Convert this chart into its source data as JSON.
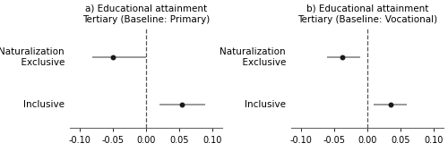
{
  "panels": [
    {
      "title": "a) Educational attainment\nTertiary (Baseline: Primary)",
      "rows": [
        {
          "label": "Naturalization\n  Exclusive",
          "estimate": -0.05,
          "ci_low": -0.08,
          "ci_high": 0.0,
          "y": 3.0
        },
        {
          "label": "Inclusive",
          "estimate": 0.055,
          "ci_low": 0.02,
          "ci_high": 0.09,
          "y": 1.0
        }
      ]
    },
    {
      "title": "b) Educational attainment\nTertiary (Baseline: Vocational)",
      "rows": [
        {
          "label": "Naturalization\n  Exclusive",
          "estimate": -0.038,
          "ci_low": -0.06,
          "ci_high": -0.01,
          "y": 3.0
        },
        {
          "label": "Inclusive",
          "estimate": 0.035,
          "ci_low": 0.01,
          "ci_high": 0.06,
          "y": 1.0
        }
      ]
    }
  ],
  "xlim": [
    -0.115,
    0.115
  ],
  "xticks": [
    -0.1,
    -0.05,
    0.0,
    0.05,
    0.1
  ],
  "xticklabels": [
    "-0.10",
    "-0.05",
    "0.00",
    "0.05",
    "0.10"
  ],
  "vline_x": 0.0,
  "dot_color": "#1a1a1a",
  "line_color": "#888888",
  "title_fontsize": 7.5,
  "label_fontsize": 7.5,
  "tick_fontsize": 7.0,
  "dot_size": 18,
  "line_width": 1.2,
  "ylim": [
    0.0,
    4.2
  ]
}
